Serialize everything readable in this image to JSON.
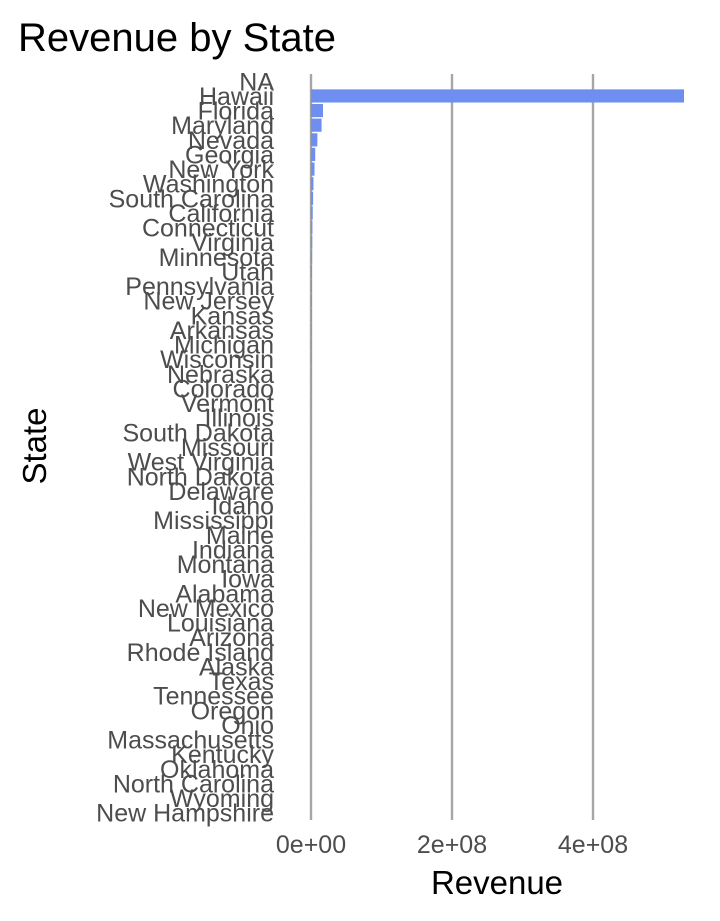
{
  "colors": {
    "bar": "#6e8ff0",
    "grid": "#a6a6a6",
    "tick_text": "#4d4d4d"
  },
  "chart_data": {
    "type": "bar",
    "orientation": "horizontal",
    "title": "Revenue by State",
    "xlabel": "Revenue",
    "ylabel": "State",
    "grid": "vertical major lines",
    "legend": "none",
    "xlim": [
      0,
      530000000
    ],
    "xticks": [
      0,
      200000000,
      400000000
    ],
    "xtick_labels": [
      "0e+00",
      "2e+08",
      "4e+08"
    ],
    "categories": [
      "NA",
      "Hawaii",
      "Florida",
      "Maryland",
      "Nevada",
      "Georgia",
      "New York",
      "Washington",
      "South Carolina",
      "California",
      "Connecticut",
      "Virginia",
      "Minnesota",
      "Utah",
      "Pennsylvania",
      "New Jersey",
      "Kansas",
      "Arkansas",
      "Michigan",
      "Wisconsin",
      "Nebraska",
      "Colorado",
      "Vermont",
      "Illinois",
      "South Dakota",
      "Missouri",
      "West Virginia",
      "North Dakota",
      "Delaware",
      "Idaho",
      "Mississippi",
      "Maine",
      "Indiana",
      "Montana",
      "Iowa",
      "Alabama",
      "New Mexico",
      "Louisiana",
      "Arizona",
      "Rhode Island",
      "Alaska",
      "Texas",
      "Tennessee",
      "Oregon",
      "Ohio",
      "Massachusetts",
      "Kentucky",
      "Oklahoma",
      "North Carolina",
      "Wyoming",
      "New Hampshire"
    ],
    "values": [
      0,
      530000000,
      17000000,
      15000000,
      9000000,
      6000000,
      5000000,
      3500000,
      3000000,
      2500000,
      2000000,
      1800000,
      1600000,
      1400000,
      1300000,
      1200000,
      1100000,
      1000000,
      900000,
      800000,
      700000,
      600000,
      550000,
      500000,
      450000,
      400000,
      350000,
      300000,
      280000,
      260000,
      240000,
      220000,
      200000,
      180000,
      160000,
      150000,
      140000,
      130000,
      120000,
      110000,
      100000,
      90000,
      80000,
      70000,
      60000,
      50000,
      40000,
      30000,
      20000,
      15000,
      10000
    ]
  }
}
